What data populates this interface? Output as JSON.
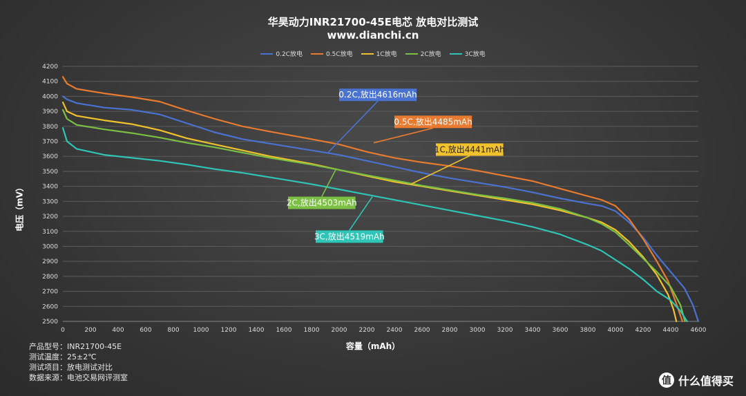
{
  "title": "华昊动力INR21700-45E电芯 放电对比测试",
  "subtitle": "www.dianchi.cn",
  "info": [
    {
      "label": "产品型号：",
      "value": "INR21700-45E"
    },
    {
      "label": "测试温度：",
      "value": "25±2℃"
    },
    {
      "label": "测试项目：",
      "value": "放电测试对比"
    },
    {
      "label": "数据来源：",
      "value": "电池交易网评测室"
    }
  ],
  "brand": {
    "text": "什么值得买",
    "logo": "值"
  },
  "chart_data": {
    "type": "line",
    "xlabel": "容量（mAh）",
    "ylabel": "电压（mV）",
    "xlim": [
      0,
      4600
    ],
    "ylim": [
      2500,
      4200
    ],
    "xticks": [
      0,
      200,
      400,
      600,
      800,
      1000,
      1200,
      1400,
      1600,
      1800,
      2000,
      2200,
      2400,
      2600,
      2800,
      3000,
      3200,
      3400,
      3600,
      3800,
      4000,
      4200,
      4400,
      4600
    ],
    "yticks": [
      2500,
      2600,
      2700,
      2800,
      2900,
      3000,
      3100,
      3200,
      3300,
      3400,
      3500,
      3600,
      3700,
      3800,
      3900,
      4000,
      4100,
      4200
    ],
    "grid": true,
    "legend_position": "top",
    "series": [
      {
        "name": "0.2C放电",
        "color": "#4a72d1",
        "points": [
          [
            0,
            4000
          ],
          [
            30,
            3980
          ],
          [
            100,
            3955
          ],
          [
            300,
            3925
          ],
          [
            500,
            3910
          ],
          [
            700,
            3880
          ],
          [
            900,
            3820
          ],
          [
            1100,
            3760
          ],
          [
            1300,
            3715
          ],
          [
            1500,
            3685
          ],
          [
            1800,
            3640
          ],
          [
            2000,
            3610
          ],
          [
            2200,
            3570
          ],
          [
            2400,
            3530
          ],
          [
            2600,
            3490
          ],
          [
            2800,
            3455
          ],
          [
            3000,
            3425
          ],
          [
            3200,
            3395
          ],
          [
            3400,
            3360
          ],
          [
            3600,
            3320
          ],
          [
            3800,
            3285
          ],
          [
            3900,
            3270
          ],
          [
            4000,
            3235
          ],
          [
            4100,
            3160
          ],
          [
            4200,
            3060
          ],
          [
            4300,
            2940
          ],
          [
            4400,
            2830
          ],
          [
            4500,
            2720
          ],
          [
            4560,
            2610
          ],
          [
            4600,
            2500
          ]
        ]
      },
      {
        "name": "0.5C放电",
        "color": "#e87b30",
        "points": [
          [
            0,
            4130
          ],
          [
            30,
            4085
          ],
          [
            100,
            4050
          ],
          [
            300,
            4020
          ],
          [
            500,
            3995
          ],
          [
            700,
            3965
          ],
          [
            900,
            3905
          ],
          [
            1100,
            3850
          ],
          [
            1300,
            3800
          ],
          [
            1500,
            3765
          ],
          [
            1800,
            3715
          ],
          [
            2000,
            3680
          ],
          [
            2200,
            3630
          ],
          [
            2400,
            3590
          ],
          [
            2600,
            3560
          ],
          [
            2800,
            3535
          ],
          [
            3000,
            3505
          ],
          [
            3200,
            3470
          ],
          [
            3400,
            3435
          ],
          [
            3600,
            3385
          ],
          [
            3800,
            3335
          ],
          [
            3900,
            3310
          ],
          [
            4000,
            3270
          ],
          [
            4100,
            3180
          ],
          [
            4200,
            3050
          ],
          [
            4300,
            2900
          ],
          [
            4380,
            2770
          ],
          [
            4440,
            2620
          ],
          [
            4485,
            2500
          ]
        ]
      },
      {
        "name": "1C放电",
        "color": "#f2c22c",
        "points": [
          [
            0,
            3960
          ],
          [
            30,
            3900
          ],
          [
            100,
            3870
          ],
          [
            300,
            3840
          ],
          [
            500,
            3815
          ],
          [
            700,
            3775
          ],
          [
            900,
            3720
          ],
          [
            1100,
            3680
          ],
          [
            1300,
            3640
          ],
          [
            1500,
            3600
          ],
          [
            1800,
            3550
          ],
          [
            2000,
            3510
          ],
          [
            2200,
            3470
          ],
          [
            2400,
            3430
          ],
          [
            2600,
            3400
          ],
          [
            2800,
            3370
          ],
          [
            3000,
            3340
          ],
          [
            3200,
            3310
          ],
          [
            3400,
            3280
          ],
          [
            3600,
            3240
          ],
          [
            3800,
            3190
          ],
          [
            3900,
            3160
          ],
          [
            4000,
            3110
          ],
          [
            4100,
            3030
          ],
          [
            4200,
            2930
          ],
          [
            4300,
            2810
          ],
          [
            4380,
            2680
          ],
          [
            4420,
            2580
          ],
          [
            4441,
            2500
          ]
        ]
      },
      {
        "name": "2C放电",
        "color": "#7bc043",
        "points": [
          [
            0,
            3910
          ],
          [
            30,
            3850
          ],
          [
            100,
            3810
          ],
          [
            300,
            3780
          ],
          [
            500,
            3755
          ],
          [
            700,
            3725
          ],
          [
            900,
            3690
          ],
          [
            1100,
            3660
          ],
          [
            1300,
            3625
          ],
          [
            1500,
            3590
          ],
          [
            1800,
            3545
          ],
          [
            2000,
            3510
          ],
          [
            2200,
            3475
          ],
          [
            2400,
            3440
          ],
          [
            2600,
            3405
          ],
          [
            2800,
            3375
          ],
          [
            3000,
            3345
          ],
          [
            3200,
            3320
          ],
          [
            3400,
            3290
          ],
          [
            3600,
            3250
          ],
          [
            3800,
            3190
          ],
          [
            3900,
            3150
          ],
          [
            4000,
            3095
          ],
          [
            4100,
            3010
          ],
          [
            4200,
            2920
          ],
          [
            4300,
            2830
          ],
          [
            4400,
            2730
          ],
          [
            4470,
            2610
          ],
          [
            4503,
            2500
          ]
        ]
      },
      {
        "name": "3C放电",
        "color": "#2ec4b6",
        "points": [
          [
            0,
            3790
          ],
          [
            30,
            3700
          ],
          [
            100,
            3650
          ],
          [
            300,
            3610
          ],
          [
            500,
            3590
          ],
          [
            700,
            3570
          ],
          [
            900,
            3545
          ],
          [
            1100,
            3515
          ],
          [
            1300,
            3490
          ],
          [
            1500,
            3460
          ],
          [
            1800,
            3415
          ],
          [
            2000,
            3380
          ],
          [
            2200,
            3345
          ],
          [
            2400,
            3310
          ],
          [
            2600,
            3275
          ],
          [
            2800,
            3240
          ],
          [
            3000,
            3205
          ],
          [
            3200,
            3170
          ],
          [
            3400,
            3130
          ],
          [
            3600,
            3080
          ],
          [
            3800,
            3010
          ],
          [
            3900,
            2970
          ],
          [
            4000,
            2910
          ],
          [
            4100,
            2850
          ],
          [
            4200,
            2780
          ],
          [
            4300,
            2700
          ],
          [
            4400,
            2640
          ],
          [
            4470,
            2570
          ],
          [
            4519,
            2500
          ]
        ]
      }
    ],
    "annotations": [
      {
        "text": "0.2C,放出4616mAh",
        "series": 0,
        "anchor": [
          1920,
          3625
        ],
        "box": [
          2000,
          4010
        ],
        "bg": "#4a72d1",
        "fg": "#ffffff"
      },
      {
        "text": "0.5C,放出4485mAh",
        "series": 1,
        "anchor": [
          2250,
          3690
        ],
        "box": [
          2400,
          3830
        ],
        "bg": "#e87b30",
        "fg": "#ffffff"
      },
      {
        "text": "1C,放出4441mAh",
        "series": 2,
        "anchor": [
          2520,
          3415
        ],
        "box": [
          2700,
          3645
        ],
        "bg": "#f2c22c",
        "fg": "#222222"
      },
      {
        "text": "2C,放出4503mAh",
        "series": 3,
        "anchor": [
          1980,
          3520
        ],
        "box": [
          1630,
          3290
        ],
        "bg": "#7bc043",
        "fg": "#ffffff"
      },
      {
        "text": "3C,放出4519mAh",
        "series": 4,
        "anchor": [
          2240,
          3330
        ],
        "box": [
          1830,
          3065
        ],
        "bg": "#2ec4b6",
        "fg": "#ffffff"
      }
    ]
  }
}
